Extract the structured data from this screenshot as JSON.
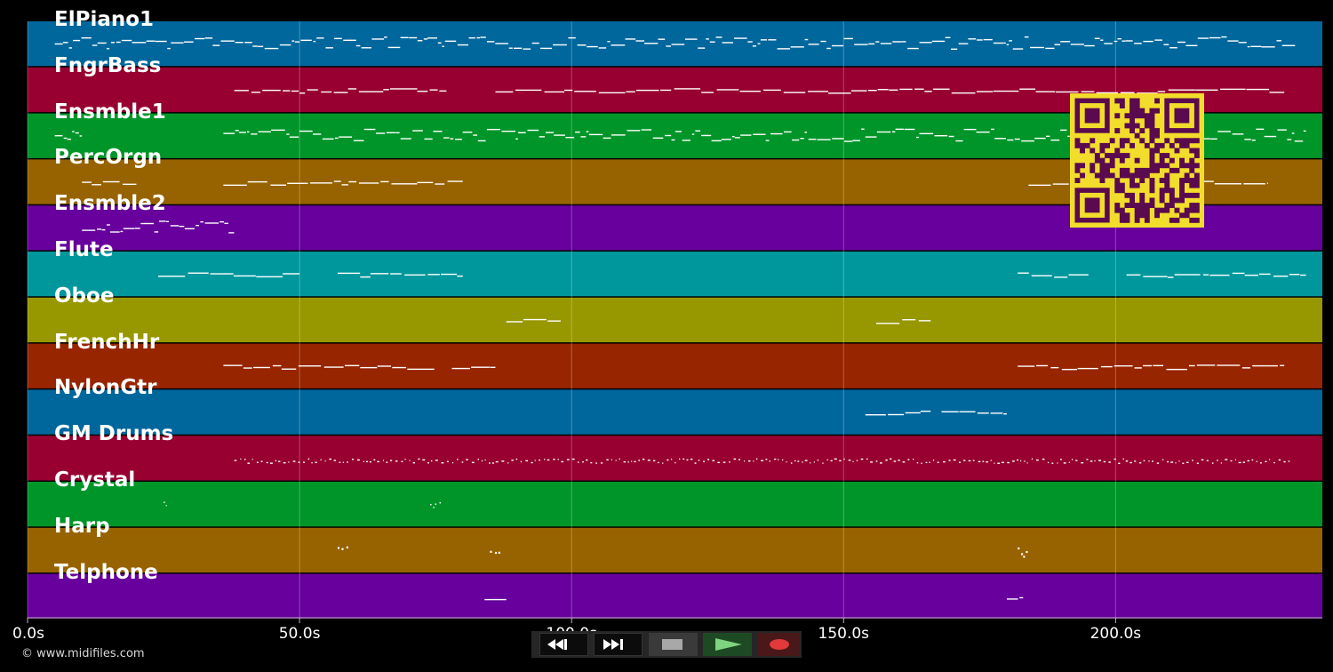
{
  "chart_data": {
    "type": "piano-roll",
    "x_unit": "s",
    "xlim": [
      0,
      238
    ],
    "x_ticks": [
      0,
      50,
      100,
      150,
      200
    ],
    "x_tick_labels": [
      "0.0s",
      "50.0s",
      "100.0s",
      "150.0s",
      "200.0s"
    ],
    "grid": true,
    "tracks": [
      {
        "name": "ElPiano1",
        "color": "#00679c",
        "active": [
          [
            5,
            233
          ]
        ],
        "density": "dense"
      },
      {
        "name": "FngrBass",
        "color": "#970030",
        "active": [
          [
            38,
            77
          ],
          [
            86,
            231
          ]
        ],
        "density": "line"
      },
      {
        "name": "Ensmble1",
        "color": "#009529",
        "active": [
          [
            5,
            10
          ],
          [
            36,
            235
          ]
        ],
        "density": "dense"
      },
      {
        "name": "PercOrgn",
        "color": "#976300",
        "active": [
          [
            10,
            20
          ],
          [
            36,
            80
          ],
          [
            184,
            228
          ]
        ],
        "density": "line"
      },
      {
        "name": "Ensmble2",
        "color": "#67009c",
        "active": [
          [
            10,
            38
          ]
        ],
        "density": "dense"
      },
      {
        "name": "Flute",
        "color": "#00979c",
        "active": [
          [
            24,
            50
          ],
          [
            57,
            80
          ],
          [
            182,
            195
          ],
          [
            202,
            235
          ]
        ],
        "density": "line"
      },
      {
        "name": "Oboe",
        "color": "#979700",
        "active": [
          [
            88,
            98
          ],
          [
            156,
            166
          ]
        ],
        "density": "line"
      },
      {
        "name": "FrenchHr",
        "color": "#972500",
        "active": [
          [
            36,
            75
          ],
          [
            78,
            86
          ],
          [
            182,
            231
          ]
        ],
        "density": "line"
      },
      {
        "name": "NylonGtr",
        "color": "#00679c",
        "active": [
          [
            154,
            166
          ],
          [
            168,
            180
          ]
        ],
        "density": "line"
      },
      {
        "name": "GM Drums",
        "color": "#970030",
        "active": [
          [
            38,
            232
          ]
        ],
        "density": "dots"
      },
      {
        "name": "Crystal",
        "color": "#009529",
        "active": [
          [
            25,
            25.6
          ],
          [
            74,
            76
          ]
        ],
        "density": "blip"
      },
      {
        "name": "Harp",
        "color": "#976300",
        "active": [
          [
            57,
            59
          ],
          [
            85,
            87
          ],
          [
            182,
            184
          ]
        ],
        "density": "arp"
      },
      {
        "name": "Telphone",
        "color": "#67009c",
        "active": [
          [
            84,
            88
          ],
          [
            180,
            183
          ]
        ],
        "density": "line"
      }
    ]
  },
  "footer": {
    "copyright": "© www.midifiles.com"
  },
  "transport": {
    "buttons": [
      {
        "name": "rewind-button",
        "icon": "rewind-icon"
      },
      {
        "name": "fast-forward-button",
        "icon": "fast-forward-icon"
      },
      {
        "name": "stop-button",
        "icon": "stop-icon"
      },
      {
        "name": "play-button",
        "icon": "play-icon"
      },
      {
        "name": "record-button",
        "icon": "record-icon"
      }
    ]
  },
  "overlay": {
    "icon": "qr-code-icon",
    "bg": "#f2dc2c",
    "fg": "#5a0a4e"
  }
}
